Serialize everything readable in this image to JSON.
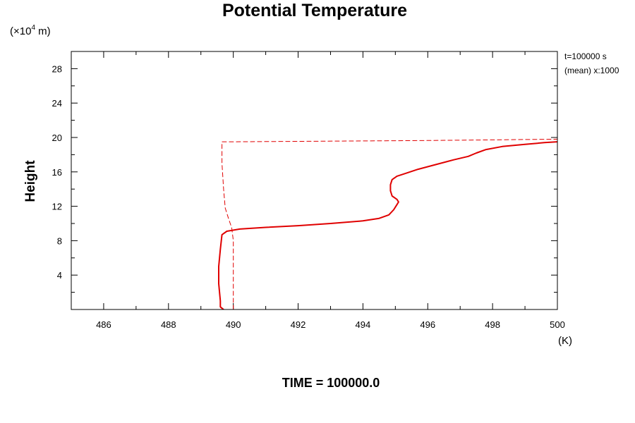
{
  "chart_data": {
    "type": "line",
    "title": "Potential Temperature",
    "ylabel": "Height",
    "yunit_prefix": "(×10",
    "yunit_exp": "4",
    "yunit_suffix": " m)",
    "xunit": "(K)",
    "xlim": [
      485,
      500
    ],
    "ylim": [
      0,
      30
    ],
    "xticks": [
      486,
      488,
      490,
      492,
      494,
      496,
      498,
      500
    ],
    "yticks": [
      4,
      8,
      12,
      16,
      20,
      24,
      28
    ],
    "annotations": [
      "t=100000 s",
      "(mean) x:1000"
    ],
    "footer": "TIME = 100000.0",
    "line_color": "#e00000",
    "series": [
      {
        "style": "solid",
        "x": [
          489.7,
          489.6,
          489.6,
          489.55,
          489.55,
          489.6,
          489.65,
          489.8,
          490.2,
          491.0,
          492.0,
          493.0,
          494.0,
          494.5,
          494.8,
          494.95,
          495.05,
          495.1,
          495.05,
          494.9,
          494.85,
          494.85,
          494.9,
          495.05,
          495.3,
          495.7,
          496.2,
          496.8,
          497.25,
          497.5,
          497.8,
          498.3,
          499.0,
          499.6,
          500.0
        ],
        "y": [
          0.0,
          0.3,
          1.0,
          3.0,
          5.0,
          7.0,
          8.7,
          9.1,
          9.35,
          9.55,
          9.75,
          10.0,
          10.3,
          10.6,
          11.0,
          11.6,
          12.2,
          12.5,
          12.8,
          13.2,
          13.8,
          14.5,
          15.1,
          15.5,
          15.8,
          16.3,
          16.8,
          17.4,
          17.8,
          18.2,
          18.6,
          18.95,
          19.2,
          19.4,
          19.5
        ]
      },
      {
        "style": "dashed",
        "x": [
          490.0,
          490.0,
          490.0,
          489.95,
          489.85,
          489.75,
          489.7,
          489.65,
          489.65,
          490.0,
          492.0,
          494.0,
          496.0,
          498.0,
          500.0
        ],
        "y": [
          0.0,
          4.0,
          8.0,
          9.5,
          10.6,
          11.8,
          14.0,
          17.0,
          19.5,
          19.5,
          19.55,
          19.6,
          19.65,
          19.72,
          19.8
        ]
      }
    ]
  }
}
